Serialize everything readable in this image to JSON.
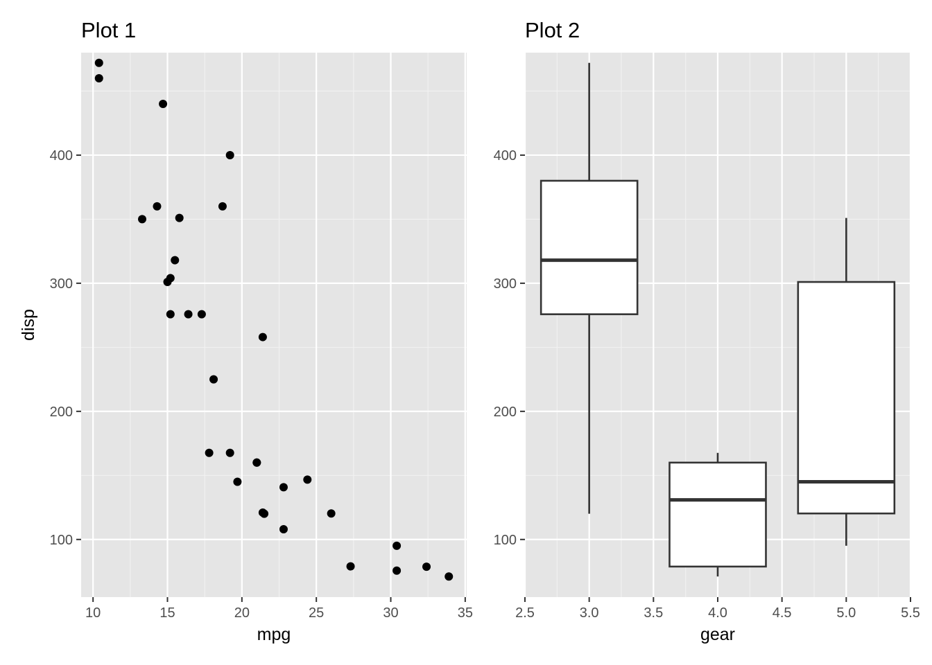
{
  "chart_data": [
    {
      "type": "scatter",
      "title": "Plot 1",
      "xlabel": "mpg",
      "ylabel": "disp",
      "xlim": [
        9.2,
        35.1
      ],
      "ylim": [
        55,
        480
      ],
      "x_ticks": [
        10,
        15,
        20,
        25,
        30,
        35
      ],
      "y_ticks": [
        100,
        200,
        300,
        400
      ],
      "grid": true,
      "points": [
        {
          "x": 10.4,
          "y": 472
        },
        {
          "x": 10.4,
          "y": 460
        },
        {
          "x": 14.7,
          "y": 440
        },
        {
          "x": 19.2,
          "y": 400
        },
        {
          "x": 14.3,
          "y": 360
        },
        {
          "x": 18.7,
          "y": 360
        },
        {
          "x": 13.3,
          "y": 350
        },
        {
          "x": 15.8,
          "y": 351
        },
        {
          "x": 15.5,
          "y": 318
        },
        {
          "x": 15.2,
          "y": 304
        },
        {
          "x": 15.0,
          "y": 301
        },
        {
          "x": 15.2,
          "y": 275.8
        },
        {
          "x": 16.4,
          "y": 275.8
        },
        {
          "x": 17.3,
          "y": 275.8
        },
        {
          "x": 21.4,
          "y": 258
        },
        {
          "x": 18.1,
          "y": 225
        },
        {
          "x": 17.8,
          "y": 167.6
        },
        {
          "x": 19.2,
          "y": 167.6
        },
        {
          "x": 21.0,
          "y": 160
        },
        {
          "x": 21.0,
          "y": 160
        },
        {
          "x": 19.7,
          "y": 145
        },
        {
          "x": 24.4,
          "y": 146.7
        },
        {
          "x": 22.8,
          "y": 140.8
        },
        {
          "x": 26.0,
          "y": 120.3
        },
        {
          "x": 21.4,
          "y": 121
        },
        {
          "x": 21.5,
          "y": 120.1
        },
        {
          "x": 22.8,
          "y": 108
        },
        {
          "x": 30.4,
          "y": 95.1
        },
        {
          "x": 27.3,
          "y": 79
        },
        {
          "x": 32.4,
          "y": 78.7
        },
        {
          "x": 30.4,
          "y": 75.7
        },
        {
          "x": 33.9,
          "y": 71.1
        }
      ]
    },
    {
      "type": "box",
      "title": "Plot 2",
      "xlabel": "gear",
      "ylabel": "",
      "xlim": [
        2.5,
        5.5
      ],
      "ylim": [
        55,
        480
      ],
      "x_ticks": [
        "2.5",
        "3.0",
        "3.5",
        "4.0",
        "4.5",
        "5.0",
        "5.5"
      ],
      "y_ticks": [
        100,
        200,
        300,
        400
      ],
      "grid": true,
      "box_halfwidth": 0.375,
      "boxes": [
        {
          "group": 3,
          "min": 120.1,
          "q1": 275.8,
          "median": 318,
          "q3": 380,
          "max": 472
        },
        {
          "group": 4,
          "min": 71.1,
          "q1": 78.85,
          "median": 130.9,
          "q3": 160,
          "max": 167.6
        },
        {
          "group": 5,
          "min": 95.1,
          "q1": 120.3,
          "median": 145,
          "q3": 301,
          "max": 351
        }
      ]
    }
  ]
}
